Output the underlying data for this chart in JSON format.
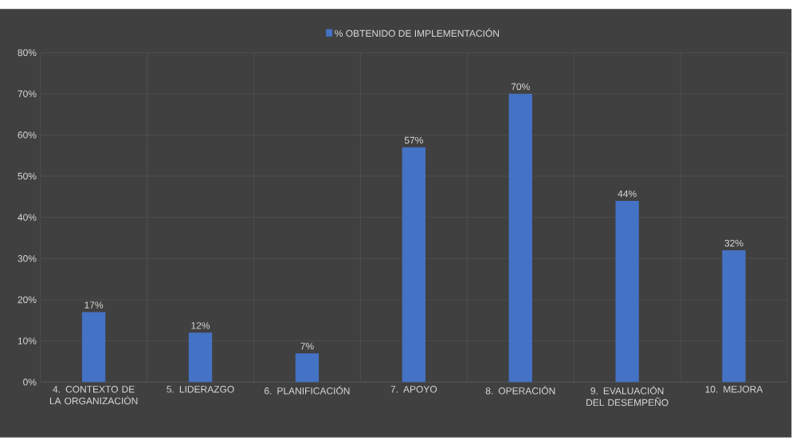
{
  "chart_data": {
    "type": "bar",
    "categories": [
      "4. CONTEXTO DE LA ORGANIZACIÓN",
      "5. LIDERAZGO",
      "6. PLANIFICACIÓN",
      "7. APOYO",
      "8. OPERACIÓN",
      "9. EVALUACIÓN DEL DESEMPEÑO",
      "10. MEJORA"
    ],
    "series": [
      {
        "name": "% OBTENIDO DE IMPLEMENTACIÓN",
        "color": "#4472c4",
        "values": [
          17,
          12,
          7,
          57,
          70,
          44,
          32
        ],
        "value_labels": [
          "17%",
          "12%",
          "7%",
          "57%",
          "70%",
          "44%",
          "32%"
        ]
      }
    ],
    "ylim": [
      0,
      80
    ],
    "yticks": [
      {
        "value": 0,
        "label": "0%"
      },
      {
        "value": 10,
        "label": "10%"
      },
      {
        "value": 20,
        "label": "20%"
      },
      {
        "value": 30,
        "label": "30%"
      },
      {
        "value": 40,
        "label": "40%"
      },
      {
        "value": 50,
        "label": "50%"
      },
      {
        "value": 60,
        "label": "60%"
      },
      {
        "value": 70,
        "label": "70%"
      },
      {
        "value": 80,
        "label": "80%"
      }
    ],
    "grid": true,
    "legend": "top"
  }
}
